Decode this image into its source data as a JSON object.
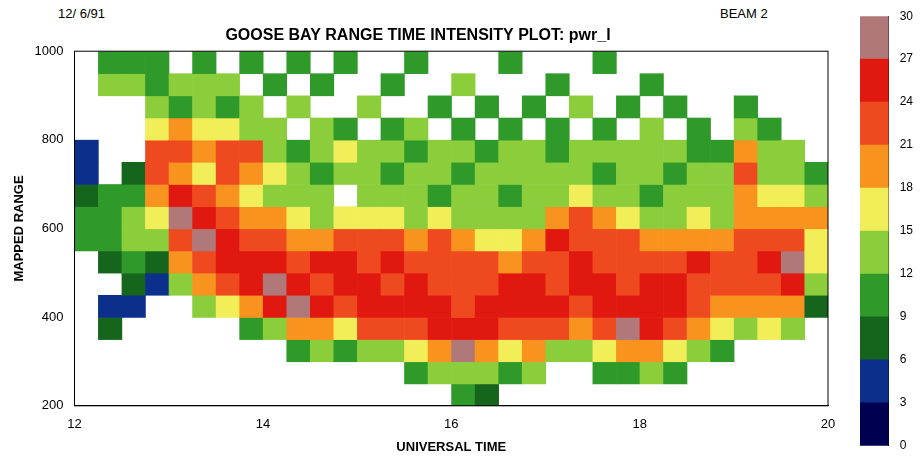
{
  "chart_data": {
    "type": "heatmap",
    "title": "GOOSE BAY RANGE TIME INTENSITY PLOT: pwr_l",
    "annotations": [
      "12/ 6/91",
      "BEAM 2"
    ],
    "x_label": "UNIVERSAL TIME",
    "y_label": "MAPPED RANGE",
    "xlim": [
      12,
      20
    ],
    "xticks": [
      12,
      14,
      16,
      18,
      20
    ],
    "ylim": [
      200,
      1000
    ],
    "yticks": [
      200,
      400,
      600,
      800,
      1000
    ],
    "grid": false,
    "x": [
      12.125,
      12.375,
      12.625,
      12.875,
      13.125,
      13.375,
      13.625,
      13.875,
      14.125,
      14.375,
      14.625,
      14.875,
      15.125,
      15.375,
      15.625,
      15.875,
      16.125,
      16.375,
      16.625,
      16.875,
      17.125,
      17.375,
      17.625,
      17.875,
      18.125,
      18.375,
      18.625,
      18.875,
      19.125,
      19.375,
      19.625,
      19.875
    ],
    "y": [
      225,
      275,
      325,
      375,
      425,
      475,
      525,
      575,
      625,
      675,
      725,
      775,
      825,
      875,
      925,
      975
    ],
    "cells": [
      [
        null,
        null,
        null,
        null,
        null,
        null,
        null,
        9,
        10,
        6,
        4,
        3,
        null,
        null,
        null,
        null
      ],
      [
        null,
        null,
        null,
        7,
        5,
        null,
        8,
        11,
        11,
        9,
        null,
        null,
        null,
        null,
        13,
        10
      ],
      [
        null,
        null,
        null,
        null,
        4,
        7,
        10,
        13,
        12,
        10,
        6,
        null,
        null,
        null,
        12,
        11
      ],
      [
        null,
        null,
        null,
        null,
        null,
        3,
        8,
        14,
        16,
        20,
        22,
        21,
        16,
        12,
        10,
        11
      ],
      [
        null,
        null,
        null,
        null,
        null,
        14,
        19,
        23,
        27,
        24,
        20,
        22,
        18,
        11,
        13,
        null
      ],
      [
        null,
        null,
        null,
        null,
        12,
        18,
        23,
        27,
        25,
        22,
        17,
        20,
        15,
        12,
        14,
        10
      ],
      [
        null,
        null,
        null,
        null,
        15,
        22,
        25,
        24,
        23,
        20,
        22,
        23,
        16,
        11,
        12,
        null
      ],
      [
        null,
        null,
        null,
        11,
        20,
        26,
        24,
        22,
        19,
        16,
        20,
        22,
        14,
        13,
        null,
        11
      ],
      [
        null,
        null,
        null,
        14,
        24,
        27,
        24,
        21,
        18,
        13,
        16,
        14,
        12,
        null,
        10,
        null
      ],
      [
        null,
        null,
        10,
        18,
        27,
        24,
        22,
        19,
        15,
        12,
        13,
        11,
        null,
        12,
        null,
        9
      ],
      [
        null,
        null,
        12,
        20,
        24,
        23,
        25,
        20,
        14,
        13,
        11,
        14,
        12,
        null,
        11,
        null
      ],
      [
        null,
        null,
        11,
        17,
        22,
        26,
        24,
        21,
        16,
        null,
        12,
        15,
        11,
        null,
        null,
        10
      ],
      [
        null,
        null,
        13,
        22,
        25,
        24,
        22,
        23,
        15,
        12,
        14,
        13,
        null,
        12,
        null,
        null
      ],
      [
        null,
        null,
        14,
        23,
        26,
        22,
        24,
        21,
        17,
        13,
        11,
        14,
        11,
        null,
        10,
        null
      ],
      [
        null,
        9,
        15,
        21,
        24,
        25,
        23,
        20,
        14,
        12,
        13,
        10,
        12,
        null,
        null,
        11
      ],
      [
        null,
        12,
        20,
        26,
        24,
        22,
        23,
        21,
        15,
        11,
        12,
        14,
        null,
        11,
        null,
        null
      ],
      [
        10,
        14,
        27,
        25,
        23,
        21,
        22,
        18,
        14,
        13,
        11,
        12,
        10,
        null,
        12,
        null
      ],
      [
        8,
        13,
        20,
        24,
        25,
        23,
        21,
        17,
        13,
        12,
        14,
        11,
        null,
        10,
        null,
        null
      ],
      [
        null,
        11,
        17,
        22,
        26,
        24,
        20,
        16,
        12,
        11,
        13,
        12,
        11,
        null,
        null,
        10
      ],
      [
        null,
        12,
        18,
        23,
        24,
        25,
        22,
        19,
        14,
        12,
        12,
        14,
        null,
        11,
        null,
        null
      ],
      [
        null,
        null,
        14,
        21,
        24,
        23,
        22,
        24,
        20,
        13,
        12,
        11,
        10,
        null,
        11,
        null
      ],
      [
        null,
        null,
        13,
        20,
        23,
        25,
        24,
        22,
        21,
        15,
        13,
        12,
        null,
        12,
        null,
        null
      ],
      [
        null,
        10,
        15,
        22,
        26,
        24,
        23,
        22,
        20,
        14,
        11,
        13,
        11,
        null,
        null,
        10
      ],
      [
        null,
        11,
        18,
        27,
        25,
        23,
        22,
        21,
        16,
        12,
        13,
        12,
        null,
        11,
        null,
        null
      ],
      [
        null,
        12,
        20,
        24,
        26,
        24,
        21,
        18,
        14,
        11,
        12,
        14,
        12,
        null,
        10,
        null
      ],
      [
        null,
        10,
        17,
        22,
        24,
        25,
        22,
        19,
        14,
        13,
        11,
        12,
        null,
        11,
        null,
        null
      ],
      [
        null,
        null,
        14,
        20,
        23,
        22,
        24,
        20,
        15,
        12,
        13,
        11,
        10,
        null,
        null,
        null
      ],
      [
        null,
        null,
        11,
        16,
        20,
        22,
        21,
        18,
        14,
        13,
        12,
        11,
        null,
        null,
        null,
        null
      ],
      [
        null,
        null,
        null,
        13,
        18,
        22,
        23,
        21,
        19,
        20,
        22,
        18,
        12,
        11,
        null,
        null
      ],
      [
        null,
        null,
        null,
        15,
        20,
        23,
        24,
        22,
        20,
        16,
        14,
        12,
        11,
        null,
        null,
        null
      ],
      [
        null,
        null,
        null,
        12,
        18,
        24,
        27,
        23,
        20,
        15,
        13,
        12,
        null,
        null,
        null,
        null
      ],
      [
        null,
        null,
        null,
        null,
        6,
        12,
        15,
        16,
        18,
        14,
        10,
        null,
        null,
        null,
        null,
        null
      ]
    ],
    "colorbar": {
      "range": [
        0,
        30
      ],
      "ticks": [
        0,
        3,
        6,
        9,
        12,
        15,
        18,
        21,
        24,
        27,
        30
      ],
      "colors": [
        "#000050",
        "#0b2f8a",
        "#16651c",
        "#2f9a2a",
        "#8ccd3c",
        "#f2ee5a",
        "#f7931e",
        "#ef4a1f",
        "#e0180f",
        "#b07878"
      ]
    }
  }
}
